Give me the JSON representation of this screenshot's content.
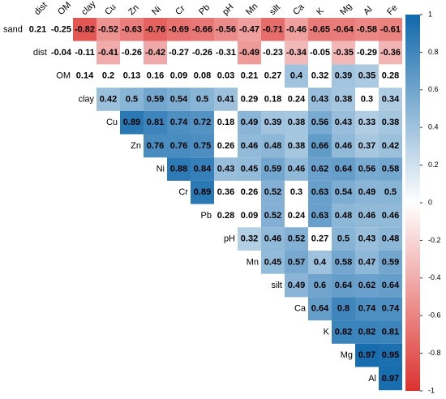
{
  "chart_data": {
    "type": "heatmap",
    "column_labels": [
      "dist",
      "OM",
      "clay",
      "Cu",
      "Zn",
      "Ni",
      "Cr",
      "Pb",
      "pH",
      "Mn",
      "silt",
      "Ca",
      "K",
      "Mg",
      "Al",
      "Fe"
    ],
    "row_labels": [
      "sand",
      "dist",
      "OM",
      "clay",
      "Cu",
      "Zn",
      "Ni",
      "Cr",
      "Pb",
      "pH",
      "Mn",
      "silt",
      "Ca",
      "K",
      "Mg",
      "Al"
    ],
    "rows": [
      {
        "values": [
          0.21,
          -0.25,
          -0.82,
          -0.52,
          -0.63,
          -0.76,
          -0.69,
          -0.66,
          -0.56,
          -0.47,
          -0.71,
          -0.46,
          -0.65,
          -0.64,
          -0.58,
          -0.61
        ],
        "significant": [
          false,
          false,
          true,
          true,
          true,
          true,
          true,
          true,
          true,
          true,
          true,
          true,
          true,
          true,
          true,
          true
        ]
      },
      {
        "values": [
          -0.04,
          -0.11,
          -0.41,
          -0.26,
          -0.42,
          -0.27,
          -0.26,
          -0.31,
          -0.49,
          -0.23,
          -0.34,
          -0.05,
          -0.35,
          -0.29,
          -0.36
        ],
        "significant": [
          false,
          false,
          true,
          false,
          true,
          false,
          false,
          false,
          true,
          false,
          true,
          false,
          true,
          false,
          true
        ]
      },
      {
        "values": [
          0.14,
          0.2,
          0.13,
          0.16,
          0.09,
          0.08,
          0.03,
          0.21,
          0.27,
          0.4,
          0.32,
          0.39,
          0.35,
          0.28
        ],
        "significant": [
          false,
          false,
          false,
          false,
          false,
          false,
          false,
          false,
          false,
          true,
          false,
          true,
          true,
          false
        ]
      },
      {
        "values": [
          0.42,
          0.5,
          0.59,
          0.54,
          0.5,
          0.41,
          0.29,
          0.18,
          0.24,
          0.43,
          0.38,
          0.3,
          0.34
        ],
        "significant": [
          true,
          true,
          true,
          true,
          true,
          true,
          false,
          false,
          false,
          true,
          true,
          false,
          true
        ]
      },
      {
        "values": [
          0.89,
          0.81,
          0.74,
          0.72,
          0.18,
          0.49,
          0.39,
          0.38,
          0.56,
          0.43,
          0.33,
          0.38
        ],
        "significant": [
          true,
          true,
          true,
          true,
          false,
          true,
          true,
          true,
          true,
          true,
          true,
          true
        ]
      },
      {
        "values": [
          0.76,
          0.76,
          0.75,
          0.26,
          0.46,
          0.48,
          0.38,
          0.66,
          0.46,
          0.37,
          0.42
        ],
        "significant": [
          true,
          true,
          true,
          false,
          true,
          true,
          true,
          true,
          true,
          true,
          true
        ]
      },
      {
        "values": [
          0.88,
          0.84,
          0.43,
          0.45,
          0.59,
          0.46,
          0.62,
          0.64,
          0.56,
          0.58
        ],
        "significant": [
          true,
          true,
          true,
          true,
          true,
          true,
          true,
          true,
          true,
          true
        ]
      },
      {
        "values": [
          0.89,
          0.36,
          0.26,
          0.52,
          0.3,
          0.63,
          0.54,
          0.49,
          0.5
        ],
        "significant": [
          true,
          false,
          false,
          true,
          false,
          true,
          true,
          true,
          true
        ]
      },
      {
        "values": [
          0.28,
          0.09,
          0.52,
          0.24,
          0.63,
          0.48,
          0.46,
          0.46
        ],
        "significant": [
          false,
          false,
          true,
          false,
          true,
          true,
          true,
          true
        ]
      },
      {
        "values": [
          0.32,
          0.46,
          0.52,
          0.27,
          0.5,
          0.43,
          0.48
        ],
        "significant": [
          true,
          true,
          true,
          false,
          true,
          true,
          true
        ]
      },
      {
        "values": [
          0.45,
          0.57,
          0.4,
          0.58,
          0.47,
          0.59
        ],
        "significant": [
          true,
          true,
          true,
          true,
          true,
          true
        ]
      },
      {
        "values": [
          0.49,
          0.6,
          0.64,
          0.62,
          0.64
        ],
        "significant": [
          true,
          true,
          true,
          true,
          true
        ]
      },
      {
        "values": [
          0.64,
          0.8,
          0.74,
          0.74
        ],
        "significant": [
          true,
          true,
          true,
          true
        ]
      },
      {
        "values": [
          0.82,
          0.82,
          0.81
        ],
        "significant": [
          true,
          true,
          true
        ]
      },
      {
        "values": [
          0.97,
          0.95
        ],
        "significant": [
          true,
          true
        ]
      },
      {
        "values": [
          0.97
        ],
        "significant": [
          true
        ]
      }
    ],
    "colormap": [
      "#dc322f",
      "#ffffff",
      "#1068ac"
    ],
    "ylim": [
      -1,
      1
    ],
    "yticks": [
      -1,
      -0.8,
      -0.6,
      -0.4,
      -0.2,
      0,
      0.2,
      0.4,
      0.6,
      0.8,
      1
    ]
  }
}
